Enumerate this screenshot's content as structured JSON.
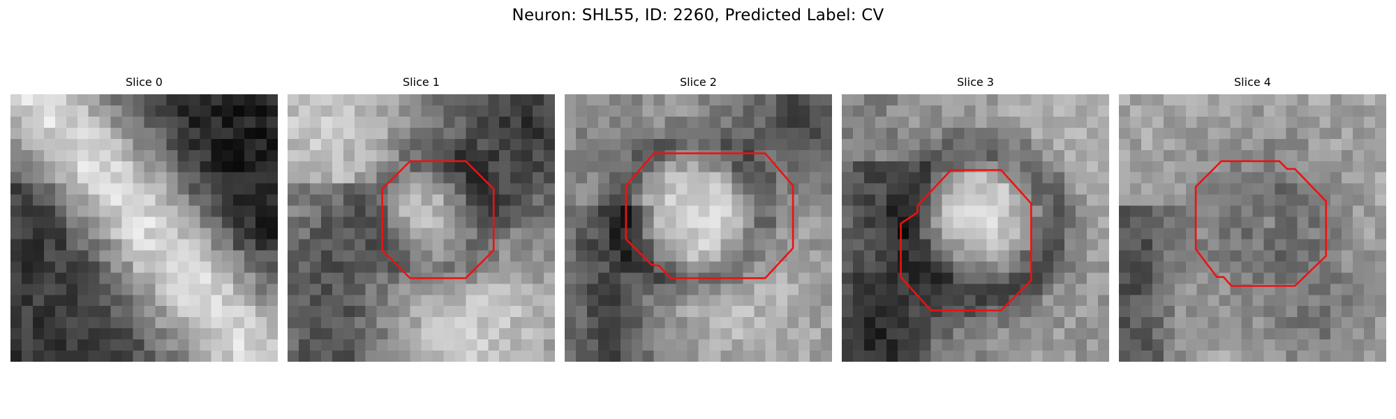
{
  "figure": {
    "title": "Neuron: SHL55, ID: 2260, Predicted Label: CV"
  },
  "colors": {
    "background": "#ffffff",
    "contour": "#ee1111",
    "image_colormap": "grayscale"
  },
  "icons": {
    "contour": "octagon-contour-icon"
  },
  "slices": [
    {
      "title": "Slice 0"
    },
    {
      "title": "Slice 1"
    },
    {
      "title": "Slice 2"
    },
    {
      "title": "Slice 3"
    },
    {
      "title": "Slice 4"
    }
  ]
}
